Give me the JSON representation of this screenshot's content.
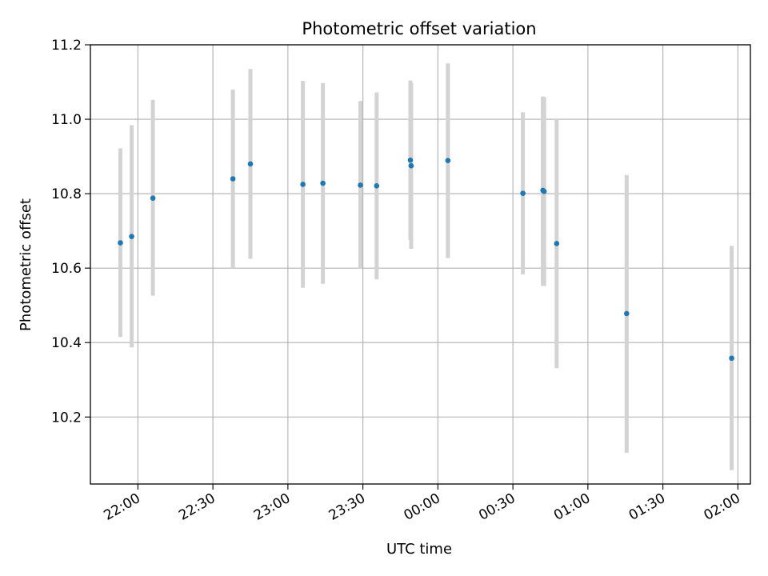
{
  "chart_data": {
    "type": "scatter",
    "title": "Photometric offset variation",
    "xlabel": "UTC time",
    "ylabel": "Photometric offset",
    "xlim": [
      "21:41",
      "02:05"
    ],
    "ylim": [
      10.02,
      11.2
    ],
    "x_ticks": [
      "22:00",
      "22:30",
      "23:00",
      "23:30",
      "00:00",
      "00:30",
      "01:00",
      "01:30",
      "02:00"
    ],
    "y_ticks": [
      10.2,
      10.4,
      10.6,
      10.8,
      11.0,
      11.2
    ],
    "grid": true,
    "points": [
      {
        "t": "21:53",
        "y": 10.668,
        "lo": 10.415,
        "hi": 10.922
      },
      {
        "t": "21:57.5",
        "y": 10.685,
        "lo": 10.387,
        "hi": 10.984
      },
      {
        "t": "22:06",
        "y": 10.788,
        "lo": 10.526,
        "hi": 11.052
      },
      {
        "t": "22:38",
        "y": 10.84,
        "lo": 10.6,
        "hi": 11.08
      },
      {
        "t": "22:45",
        "y": 10.88,
        "lo": 10.625,
        "hi": 11.135
      },
      {
        "t": "23:06",
        "y": 10.825,
        "lo": 10.547,
        "hi": 11.103
      },
      {
        "t": "23:14",
        "y": 10.828,
        "lo": 10.558,
        "hi": 11.097
      },
      {
        "t": "23:29",
        "y": 10.823,
        "lo": 10.598,
        "hi": 11.049
      },
      {
        "t": "23:35.5",
        "y": 10.821,
        "lo": 10.57,
        "hi": 11.072
      },
      {
        "t": "23:49",
        "y": 10.89,
        "lo": 10.676,
        "hi": 11.104
      },
      {
        "t": "23:49.3",
        "y": 10.875,
        "lo": 10.652,
        "hi": 11.097
      },
      {
        "t": "00:04",
        "y": 10.889,
        "lo": 10.627,
        "hi": 11.15
      },
      {
        "t": "00:34",
        "y": 10.801,
        "lo": 10.583,
        "hi": 11.019
      },
      {
        "t": "00:42",
        "y": 10.809,
        "lo": 10.552,
        "hi": 11.061
      },
      {
        "t": "00:42.5",
        "y": 10.806,
        "lo": 10.552,
        "hi": 11.059
      },
      {
        "t": "00:47.5",
        "y": 10.666,
        "lo": 10.331,
        "hi": 11.0
      },
      {
        "t": "01:15.5",
        "y": 10.478,
        "lo": 10.104,
        "hi": 10.85
      },
      {
        "t": "01:57.5",
        "y": 10.358,
        "lo": 10.057,
        "hi": 10.66
      }
    ],
    "colors": {
      "point": "#1f77b4",
      "errorbar": "#d3d3d3",
      "grid": "#b0b0b0"
    }
  }
}
